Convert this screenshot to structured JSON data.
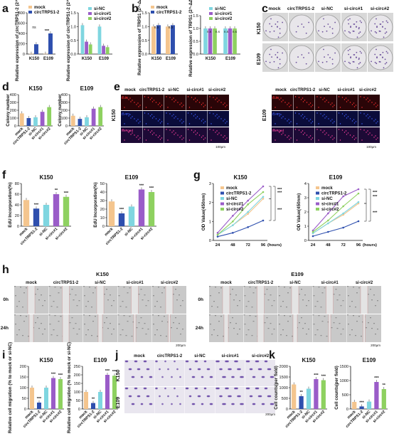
{
  "labels": [
    "a",
    "b",
    "c",
    "d",
    "e",
    "f",
    "g",
    "h",
    "i",
    "j",
    "k"
  ],
  "colors": {
    "mock": "#f4c58e",
    "circ": "#2e4fae",
    "siNC": "#7fd6e0",
    "si1": "#9a5cc8",
    "si2": "#8ed160"
  },
  "chart_data": [
    {
      "panel": "a-left",
      "type": "bar",
      "ylabel": "Relative expression of circTRPS1-2 (2^-ΔΔCt)",
      "categories": [
        "K150",
        "E109"
      ],
      "series": [
        {
          "name": "mock",
          "values": [
            5,
            5
          ]
        },
        {
          "name": "circTRPS1-2",
          "values": [
            190,
            400
          ]
        }
      ],
      "yticks": [
        "0",
        "200",
        "400",
        "600",
        "800"
      ],
      "ylim": [
        0,
        800
      ],
      "annotations": [
        "ns",
        "***"
      ]
    },
    {
      "panel": "a-right",
      "type": "bar",
      "ylabel": "Relative expression of circTRPS1-2 (2^-ΔΔCt)",
      "categories": [
        "K150",
        "E109"
      ],
      "series": [
        {
          "name": "si-NC",
          "values": [
            1.05,
            1.0
          ]
        },
        {
          "name": "si-circ#1",
          "values": [
            0.45,
            0.3
          ]
        },
        {
          "name": "si-circ#2",
          "values": [
            0.35,
            0.25
          ]
        }
      ],
      "yticks": [
        "0.0",
        "0.5",
        "1.0",
        "1.5"
      ],
      "ylim": [
        0,
        1.5
      ]
    },
    {
      "panel": "b-left",
      "type": "bar",
      "ylabel": "Relative expression of TRPS1 (2^-ΔΔCt)",
      "categories": [
        "K150",
        "E109"
      ],
      "series": [
        {
          "name": "mock",
          "values": [
            1.0,
            1.0
          ]
        },
        {
          "name": "circTRPS1-2",
          "values": [
            1.05,
            1.05
          ]
        }
      ],
      "yticks": [
        "0.0",
        "0.5",
        "1.0",
        "1.5"
      ],
      "ylim": [
        0,
        1.5
      ],
      "annotations": [
        "n.s",
        "n.s"
      ]
    },
    {
      "panel": "b-right",
      "type": "bar",
      "ylabel": "Relative expression of TRPS1 (2^-ΔΔCt)",
      "categories": [
        "K150",
        "E109"
      ],
      "series": [
        {
          "name": "si-NC",
          "values": [
            1.0,
            1.0
          ]
        },
        {
          "name": "si-circ#1",
          "values": [
            1.0,
            1.0
          ]
        },
        {
          "name": "si-circ#2",
          "values": [
            1.0,
            1.0
          ]
        }
      ],
      "yticks": [
        "0.0",
        "0.5",
        "1.0",
        "1.5"
      ],
      "ylim": [
        0,
        1.5
      ],
      "annotations": [
        "n.s",
        "n.s",
        "n.s",
        "n.s"
      ]
    },
    {
      "panel": "d-K150",
      "type": "bar",
      "title": "K150",
      "ylabel": "Colony number",
      "categories": [
        "mock",
        "circTRPS1-2",
        "si-NC",
        "si-circ#1",
        "si-circ#2"
      ],
      "values": [
        160,
        100,
        110,
        180,
        240
      ],
      "yticks": [
        "0",
        "100",
        "200",
        "300",
        "400"
      ],
      "ylim": [
        0,
        400
      ]
    },
    {
      "panel": "d-E109",
      "type": "bar",
      "title": "E109",
      "ylabel": "Colony number",
      "categories": [
        "mock",
        "circTRPS1-2",
        "si-NC",
        "si-circ#1",
        "si-circ#2"
      ],
      "values": [
        130,
        90,
        110,
        220,
        240
      ],
      "yticks": [
        "0",
        "100",
        "200",
        "300",
        "400"
      ],
      "ylim": [
        0,
        400
      ]
    },
    {
      "panel": "f-K150",
      "type": "bar",
      "title": "K150",
      "ylabel": "EdU Incorporation(%)",
      "categories": [
        "mock",
        "circTRPS1-2",
        "si-NC",
        "si-circ#1",
        "si-circ#2"
      ],
      "values": [
        49,
        33,
        40,
        60,
        55
      ],
      "yticks": [
        "0",
        "20",
        "40",
        "60",
        "80"
      ],
      "ylim": [
        0,
        80
      ],
      "annotations": [
        "***",
        "**",
        "***"
      ]
    },
    {
      "panel": "f-E109",
      "type": "bar",
      "title": "E109",
      "ylabel": "EdU Incorporation(%)",
      "categories": [
        "mock",
        "circTRPS1-2",
        "si-NC",
        "si-circ#1",
        "si-circ#2"
      ],
      "values": [
        29,
        15,
        23,
        43,
        40
      ],
      "yticks": [
        "0",
        "10",
        "20",
        "30",
        "40",
        "50"
      ],
      "ylim": [
        0,
        50
      ],
      "annotations": [
        "***",
        "***",
        "***"
      ]
    },
    {
      "panel": "g-K150",
      "type": "line",
      "title": "K150",
      "ylabel": "OD Value(450nm)",
      "xlabel": "(hours)",
      "x": [
        24,
        48,
        72,
        96
      ],
      "xticks": [
        "24",
        "48",
        "72",
        "96"
      ],
      "yticks": [
        "0",
        "1",
        "2",
        "3"
      ],
      "ylim": [
        0,
        3
      ],
      "series": [
        {
          "name": "mock",
          "values": [
            0.3,
            0.8,
            1.4,
            2.2
          ]
        },
        {
          "name": "circTRPS1-2",
          "values": [
            0.2,
            0.4,
            0.7,
            1.05
          ]
        },
        {
          "name": "si-NC",
          "values": [
            0.3,
            0.8,
            1.5,
            2.3
          ]
        },
        {
          "name": "si-circ#1",
          "values": [
            0.4,
            1.3,
            2.1,
            2.85
          ]
        },
        {
          "name": "si-circ#2",
          "values": [
            0.3,
            1.0,
            1.9,
            2.55
          ]
        }
      ],
      "annotations": [
        "***",
        "***",
        "***"
      ]
    },
    {
      "panel": "g-E109",
      "type": "line",
      "title": "E109",
      "ylabel": "OD Value(450nm)",
      "xlabel": "(hours)",
      "x": [
        24,
        48,
        72,
        96
      ],
      "xticks": [
        "24",
        "48",
        "72",
        "96"
      ],
      "yticks": [
        "0",
        "1",
        "2",
        "3",
        "4"
      ],
      "ylim": [
        0,
        4
      ],
      "series": [
        {
          "name": "mock",
          "values": [
            0.5,
            1.2,
            1.8,
            2.6
          ]
        },
        {
          "name": "circTRPS1-2",
          "values": [
            0.3,
            0.6,
            0.9,
            1.35
          ]
        },
        {
          "name": "si-NC",
          "values": [
            0.5,
            1.2,
            1.9,
            2.7
          ]
        },
        {
          "name": "si-circ#1",
          "values": [
            0.7,
            1.9,
            3.1,
            3.6
          ]
        },
        {
          "name": "si-circ#2",
          "values": [
            0.6,
            1.4,
            2.4,
            3.3
          ]
        }
      ],
      "annotations": [
        "***",
        "***",
        "***"
      ]
    },
    {
      "panel": "i-K150",
      "type": "bar",
      "title": "K150",
      "ylabel": "Relative cell migration (% to mock or si-NC)",
      "categories": [
        "mock",
        "circTRPS1-2",
        "si-NC",
        "si-circ#1",
        "si-circ#2"
      ],
      "values": [
        100,
        30,
        100,
        145,
        140
      ],
      "yticks": [
        "0",
        "50",
        "100",
        "150",
        "200"
      ],
      "ylim": [
        0,
        200
      ],
      "annotations": [
        "***",
        "***",
        "***"
      ]
    },
    {
      "panel": "i-E109",
      "type": "bar",
      "title": "E109",
      "ylabel": "Relative cell migration (% to mock or si-NC)",
      "categories": [
        "mock",
        "circTRPS1-2",
        "si-NC",
        "si-circ#1",
        "si-circ#2"
      ],
      "values": [
        100,
        35,
        100,
        200,
        195
      ],
      "yticks": [
        "0",
        "50",
        "100",
        "150",
        "200",
        "250"
      ],
      "ylim": [
        0,
        250
      ],
      "annotations": [
        "**",
        "***",
        "***"
      ]
    },
    {
      "panel": "k-K150",
      "type": "bar",
      "title": "K150",
      "ylabel": "Cell counts(per field)",
      "categories": [
        "mock",
        "circTRPS1-2",
        "si-NC",
        "si-circ#1",
        "si-circ#2"
      ],
      "values": [
        1150,
        600,
        950,
        1400,
        1350
      ],
      "yticks": [
        "0",
        "500",
        "1000",
        "1500",
        "2000"
      ],
      "ylim": [
        0,
        2000
      ],
      "annotations": [
        "**",
        "***",
        "***"
      ]
    },
    {
      "panel": "k-E109",
      "type": "bar",
      "title": "E109",
      "ylabel": "Cell counts(per field)",
      "categories": [
        "mock",
        "circTRPS1-2",
        "si-NC",
        "si-circ#1",
        "si-circ#2"
      ],
      "values": [
        250,
        90,
        260,
        950,
        700
      ],
      "yticks": [
        "0",
        "500",
        "1000",
        "1500"
      ],
      "ylim": [
        0,
        1500
      ],
      "annotations": [
        "***",
        "***",
        "**"
      ]
    }
  ],
  "legends": {
    "a_left": [
      "mock",
      "circTRPS1-2"
    ],
    "a_right": [
      "si-NC",
      "si-circ#1",
      "si-circ#2"
    ],
    "b_left": [
      "mock",
      "circTRPS1-2"
    ],
    "b_right": [
      "si-NC",
      "si-circ#1",
      "si-circ#2"
    ],
    "g": [
      "mock",
      "circTRPS1-2",
      "si-NC",
      "si-circ#1",
      "si-circ#2"
    ]
  },
  "image_panels": {
    "c": {
      "cols": [
        "mock",
        "circTRPS1-2",
        "si-NC",
        "si-circ#1",
        "si-circ#2"
      ],
      "rows": [
        "K150",
        "E109"
      ]
    },
    "e": {
      "cols": [
        "mock",
        "circTRPS1-2",
        "si-NC",
        "si-circ#1",
        "si-circ#2"
      ],
      "rows_left": "K150",
      "rows_right": "E109",
      "channels": [
        "EdU",
        "DAPI",
        "Merged"
      ],
      "scale": "100μm"
    },
    "h": {
      "titles": [
        "K150",
        "E109"
      ],
      "cols": [
        "mock",
        "circTRPS1-2",
        "si-NC",
        "si-circ#1",
        "si-circ#2"
      ],
      "rows": [
        "0h",
        "24h"
      ],
      "scale": "200μm"
    },
    "j": {
      "cols": [
        "mock",
        "circTRPS1-2",
        "si-NC",
        "si-circ#1",
        "si-circ#2"
      ],
      "rows": [
        "K150",
        "E109"
      ],
      "scale": "200μm"
    }
  }
}
